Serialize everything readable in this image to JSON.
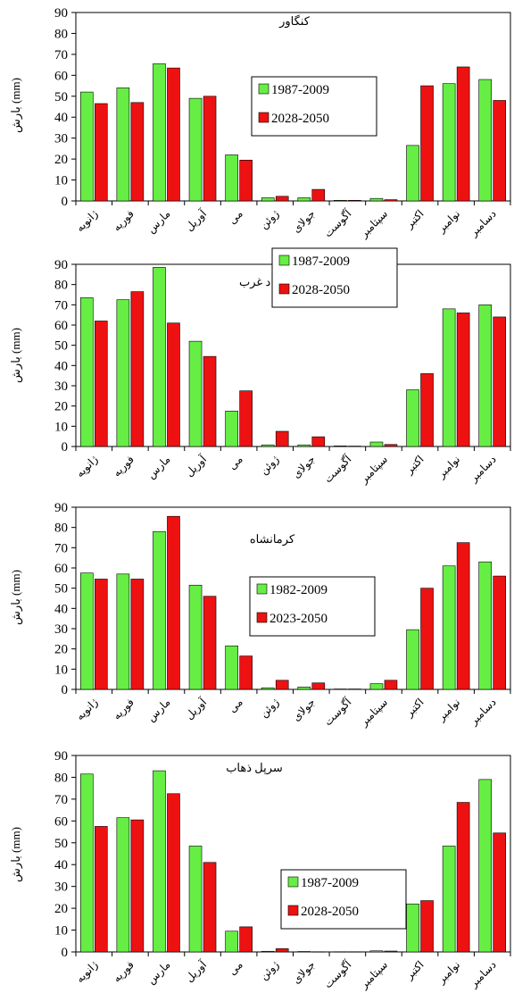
{
  "colors": {
    "series_a": "#66ee44",
    "series_b": "#ee1111",
    "axis": "#000000"
  },
  "chart_data": [
    {
      "type": "bar",
      "title": "کنگاور",
      "ylabel": "بارش (mm)",
      "ylim": [
        0,
        90
      ],
      "yticks": [
        0,
        10,
        20,
        30,
        40,
        50,
        60,
        70,
        80,
        90
      ],
      "ytick_labels": [
        "0",
        "10",
        "20",
        "30",
        "40",
        "50",
        "60",
        "70",
        "80",
        "90"
      ],
      "grid": false,
      "legend_position": "center",
      "categories": [
        "ژانویه",
        "فوریه",
        "مارس",
        "آوریل",
        "می",
        "ژوئن",
        "جولای",
        "آگوست",
        "سپتامبر",
        "اکتبر",
        "نوامبر",
        "دسامبر"
      ],
      "series": [
        {
          "name": "1987-2009",
          "values": [
            52,
            54,
            65.5,
            49,
            22,
            1.5,
            1.5,
            0.3,
            1.2,
            26.5,
            56,
            58
          ]
        },
        {
          "name": "2028-2050",
          "values": [
            46.5,
            47,
            63.5,
            50,
            19.5,
            2.2,
            5.5,
            0.3,
            0.6,
            55,
            64,
            48
          ]
        }
      ]
    },
    {
      "type": "bar",
      "title": "اسلام آباد غرب",
      "ylabel": "بارش (mm)",
      "ylim": [
        0,
        90
      ],
      "yticks": [
        0,
        10,
        20,
        30,
        40,
        50,
        60,
        70,
        80,
        90
      ],
      "ytick_labels": [
        "0",
        "10",
        "20",
        "30",
        "40",
        "50",
        "60",
        "70",
        "80",
        "90"
      ],
      "grid": false,
      "legend_position": "center",
      "categories": [
        "ژانویه",
        "فوریه",
        "مارس",
        "آوریل",
        "می",
        "ژوئن",
        "جولای",
        "آگوست",
        "سپتامبر",
        "اکتبر",
        "نوامبر",
        "دسامبر"
      ],
      "series": [
        {
          "name": "1987-2009",
          "values": [
            73.5,
            72.5,
            88.5,
            52,
            17.5,
            0.8,
            0.8,
            0.3,
            2.2,
            28,
            68,
            70
          ]
        },
        {
          "name": "2028-2050",
          "values": [
            62,
            76.5,
            61,
            44.5,
            27.5,
            7.5,
            4.8,
            0.2,
            1,
            36,
            66,
            64
          ]
        }
      ]
    },
    {
      "type": "bar",
      "title": "کرمانشاه",
      "ylabel": "بارش (mm)",
      "ylim": [
        0,
        90
      ],
      "yticks": [
        0,
        10,
        20,
        30,
        40,
        50,
        60,
        70,
        80,
        90
      ],
      "ytick_labels": [
        "0",
        "10",
        "20",
        "30",
        "40",
        "50",
        "60",
        "70",
        "80",
        "90"
      ],
      "grid": false,
      "legend_position": "center",
      "categories": [
        "ژانویه",
        "فوریه",
        "مارس",
        "آوریل",
        "می",
        "ژوئن",
        "جولای",
        "آگوست",
        "سپتامبر",
        "اکتبر",
        "نوامبر",
        "دسامبر"
      ],
      "series": [
        {
          "name": "1982-2009",
          "values": [
            57.5,
            57,
            78,
            51.5,
            21.5,
            0.8,
            1.2,
            0.2,
            2.8,
            29.5,
            61,
            63
          ]
        },
        {
          "name": "2023-2050",
          "values": [
            54.5,
            54.5,
            85.5,
            46,
            16.5,
            4.5,
            3.2,
            0.2,
            4.5,
            50,
            72.5,
            56
          ]
        }
      ]
    },
    {
      "type": "bar",
      "title": "سرپل ذهاب",
      "ylabel": "بارش (mm)",
      "ylim": [
        0,
        90
      ],
      "yticks": [
        0,
        10,
        20,
        30,
        40,
        50,
        60,
        70,
        80,
        90
      ],
      "ytick_labels": [
        "0",
        "10",
        "20",
        "30",
        "40",
        "50",
        "60",
        "70",
        "80",
        "90"
      ],
      "grid": false,
      "legend_position": "center",
      "categories": [
        "ژانویه",
        "فوریه",
        "مارس",
        "آوریل",
        "می",
        "ژوئن",
        "جولای",
        "آگوست",
        "سپتامبر",
        "اکتبر",
        "نوامبر",
        "دسامبر"
      ],
      "series": [
        {
          "name": "1987-2009",
          "values": [
            81.5,
            61.5,
            83,
            48.5,
            9.5,
            0.3,
            0.2,
            0.1,
            0.5,
            22,
            48.5,
            79
          ]
        },
        {
          "name": "2028-2050",
          "values": [
            57.5,
            60.5,
            72.5,
            41,
            11.5,
            1.5,
            0.1,
            0.1,
            0.4,
            23.5,
            68.5,
            54.5
          ]
        }
      ]
    }
  ]
}
